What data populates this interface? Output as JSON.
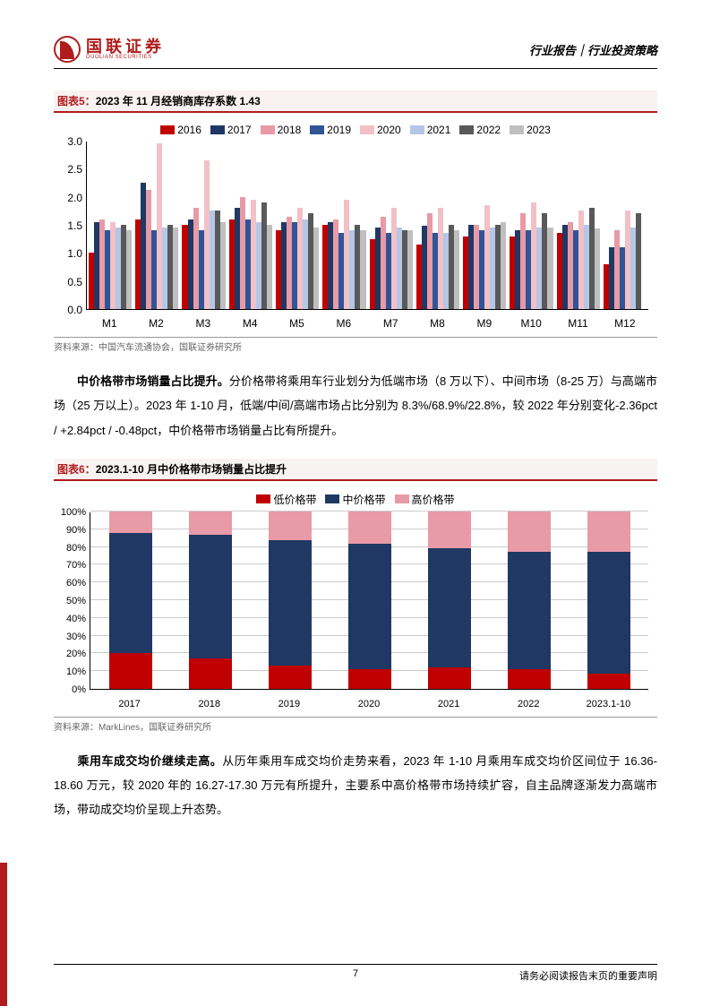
{
  "header": {
    "logo_cn": "国联证券",
    "logo_en": "GUOLIAN SECURITIES",
    "right": "行业报告｜行业投资策略"
  },
  "chart5": {
    "title_prefix": "图表5：",
    "title_text": "2023 年 11 月经销商库存系数 1.43",
    "type": "grouped-bar",
    "ylim": [
      0,
      3.0
    ],
    "ytick_step": 0.5,
    "yticks": [
      "0.0",
      "0.5",
      "1.0",
      "1.5",
      "2.0",
      "2.5",
      "3.0"
    ],
    "categories": [
      "M1",
      "M2",
      "M3",
      "M4",
      "M5",
      "M6",
      "M7",
      "M8",
      "M9",
      "M10",
      "M11",
      "M12"
    ],
    "series": [
      {
        "name": "2016",
        "color": "#c00000"
      },
      {
        "name": "2017",
        "color": "#1f3864"
      },
      {
        "name": "2018",
        "color": "#e89aa6"
      },
      {
        "name": "2019",
        "color": "#2f5597"
      },
      {
        "name": "2020",
        "color": "#f2c0c7"
      },
      {
        "name": "2021",
        "color": "#b4c7e7"
      },
      {
        "name": "2022",
        "color": "#595959"
      },
      {
        "name": "2023",
        "color": "#bfbfbf"
      }
    ],
    "data": [
      [
        1.0,
        1.55,
        1.6,
        1.4,
        1.55,
        1.45,
        1.5,
        1.4
      ],
      [
        1.6,
        2.25,
        2.12,
        1.4,
        2.95,
        1.45,
        1.5,
        1.45
      ],
      [
        1.5,
        1.6,
        1.8,
        1.4,
        2.65,
        1.75,
        1.75,
        1.55
      ],
      [
        1.6,
        1.8,
        2.0,
        1.6,
        1.95,
        1.55,
        1.9,
        1.5
      ],
      [
        1.4,
        1.55,
        1.65,
        1.55,
        1.8,
        1.6,
        1.7,
        1.45
      ],
      [
        1.5,
        1.55,
        1.6,
        1.35,
        1.95,
        1.4,
        1.5,
        1.4
      ],
      [
        1.25,
        1.45,
        1.65,
        1.35,
        1.8,
        1.45,
        1.4,
        1.4
      ],
      [
        1.15,
        1.48,
        1.7,
        1.35,
        1.8,
        1.35,
        1.5,
        1.4
      ],
      [
        1.3,
        1.5,
        1.5,
        1.4,
        1.85,
        1.45,
        1.5,
        1.55
      ],
      [
        1.3,
        1.4,
        1.7,
        1.4,
        1.9,
        1.45,
        1.7,
        1.45
      ],
      [
        1.35,
        1.5,
        1.55,
        1.4,
        1.75,
        1.5,
        1.8,
        1.43
      ],
      [
        0.8,
        1.1,
        1.4,
        1.1,
        1.75,
        1.45,
        1.7,
        0.0
      ]
    ],
    "source": "资料来源：中国汽车流通协会，国联证券研究所"
  },
  "para1": {
    "bold": "中价格带市场销量占比提升。",
    "text": "分价格带将乘用车行业划分为低端市场（8 万以下）、中间市场（8-25 万）与高端市场（25 万以上）。2023 年 1-10 月，低端/中间/高端市场占比分别为 8.3%/68.9%/22.8%，较 2022 年分别变化-2.36pct / +2.84pct / -0.48pct，中价格带市场销量占比有所提升。"
  },
  "chart6": {
    "title_prefix": "图表6：",
    "title_text": "2023.1-10 月中价格带市场销量占比提升",
    "type": "stacked-bar",
    "ylim": [
      0,
      100
    ],
    "ytick_step": 10,
    "yticks": [
      "0%",
      "10%",
      "20%",
      "30%",
      "40%",
      "50%",
      "60%",
      "70%",
      "80%",
      "90%",
      "100%"
    ],
    "categories": [
      "2017",
      "2018",
      "2019",
      "2020",
      "2021",
      "2022",
      "2023.1-10"
    ],
    "series": [
      {
        "name": "低价格带",
        "color": "#c00000"
      },
      {
        "name": "中价格带",
        "color": "#1f3864"
      },
      {
        "name": "高价格带",
        "color": "#e89aa6"
      }
    ],
    "data": [
      [
        20,
        68,
        12
      ],
      [
        17,
        70,
        13
      ],
      [
        13,
        71,
        16
      ],
      [
        11,
        71,
        18
      ],
      [
        12,
        67,
        21
      ],
      [
        11,
        66,
        23
      ],
      [
        8.3,
        68.9,
        22.8
      ]
    ],
    "source": "资料来源：MarkLines，国联证券研究所"
  },
  "para2": {
    "bold": "乘用车成交均价继续走高。",
    "text": "从历年乘用车成交均价走势来看，2023 年 1-10 月乘用车成交均价区间位于 16.36-18.60 万元，较 2020 年的 16.27-17.30 万元有所提升，主要系中高价格带市场持续扩容，自主品牌逐渐发力高端市场，带动成交均价呈现上升态势。"
  },
  "footer": {
    "page": "7",
    "note": "请务必阅读报告末页的重要声明"
  }
}
